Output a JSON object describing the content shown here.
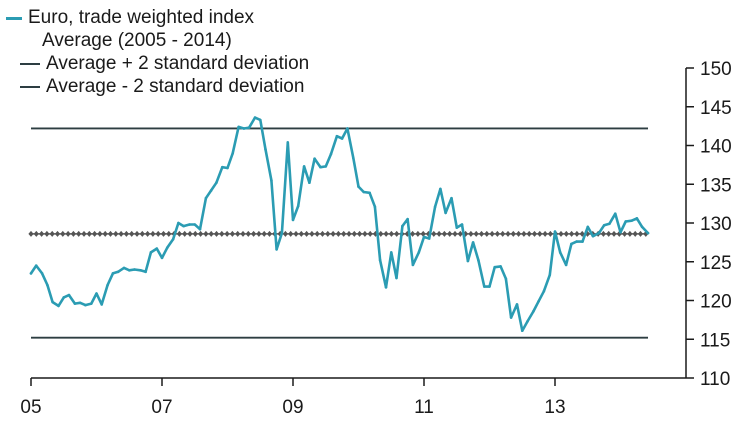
{
  "chart_data": {
    "type": "line",
    "title": "",
    "xlabel": "",
    "ylabel": "",
    "x_tick_labels": [
      "05",
      "07",
      "09",
      "11",
      "13"
    ],
    "x_tick_years": [
      2005,
      2007,
      2009,
      2011,
      2013
    ],
    "y_tick_labels": [
      "110",
      "115",
      "120",
      "125",
      "130",
      "135",
      "140",
      "145",
      "150"
    ],
    "y_tick_values": [
      110,
      115,
      120,
      125,
      130,
      135,
      140,
      145,
      150
    ],
    "xlim": [
      2005.0,
      2015.0
    ],
    "ylim": [
      110,
      150
    ],
    "y_axis_side": "right",
    "grid": false,
    "legend_position": "top-left",
    "series": [
      {
        "name": "Euro, trade weighted index",
        "color": "#2b9cb3",
        "style": "line",
        "x": [
          2005.0,
          2005.08,
          2005.17,
          2005.25,
          2005.33,
          2005.42,
          2005.5,
          2005.58,
          2005.67,
          2005.75,
          2005.83,
          2005.92,
          2006.0,
          2006.08,
          2006.17,
          2006.25,
          2006.33,
          2006.42,
          2006.5,
          2006.58,
          2006.67,
          2006.75,
          2006.83,
          2006.92,
          2007.0,
          2007.08,
          2007.17,
          2007.25,
          2007.33,
          2007.42,
          2007.5,
          2007.58,
          2007.67,
          2007.75,
          2007.83,
          2007.92,
          2008.0,
          2008.08,
          2008.17,
          2008.25,
          2008.33,
          2008.42,
          2008.5,
          2008.58,
          2008.67,
          2008.75,
          2008.83,
          2008.92,
          2009.0,
          2009.08,
          2009.17,
          2009.25,
          2009.33,
          2009.42,
          2009.5,
          2009.58,
          2009.67,
          2009.75,
          2009.83,
          2009.92,
          2010.0,
          2010.08,
          2010.17,
          2010.25,
          2010.33,
          2010.42,
          2010.5,
          2010.58,
          2010.67,
          2010.75,
          2010.83,
          2010.92,
          2011.0,
          2011.08,
          2011.17,
          2011.25,
          2011.33,
          2011.42,
          2011.5,
          2011.58,
          2011.67,
          2011.75,
          2011.83,
          2011.92,
          2012.0,
          2012.08,
          2012.17,
          2012.25,
          2012.33,
          2012.42,
          2012.5,
          2012.58,
          2012.67,
          2012.75,
          2012.83,
          2012.92,
          2013.0,
          2013.08,
          2013.17,
          2013.25,
          2013.33,
          2013.42,
          2013.5,
          2013.58,
          2013.67,
          2013.75,
          2013.83,
          2013.92,
          2014.0,
          2014.08,
          2014.17,
          2014.25,
          2014.33,
          2014.42
        ],
        "y": [
          123.5,
          124.5,
          123.5,
          122.0,
          119.8,
          119.3,
          120.4,
          120.7,
          119.6,
          119.7,
          119.4,
          119.6,
          120.9,
          119.5,
          122.0,
          123.5,
          123.7,
          124.2,
          123.9,
          124.0,
          123.9,
          123.7,
          126.2,
          126.7,
          125.5,
          126.8,
          127.9,
          130.0,
          129.6,
          129.8,
          129.8,
          129.2,
          133.2,
          134.2,
          135.2,
          137.2,
          137.1,
          139.0,
          142.4,
          142.2,
          142.3,
          143.6,
          143.3,
          139.5,
          135.5,
          126.6,
          128.7,
          140.4,
          130.4,
          132.2,
          137.3,
          135.2,
          138.3,
          137.2,
          137.3,
          138.9,
          141.2,
          140.9,
          142.2,
          138.4,
          134.7,
          134.0,
          133.9,
          132.1,
          125.2,
          121.7,
          126.2,
          122.9,
          129.6,
          130.5,
          124.6,
          126.2,
          128.2,
          128.0,
          132.1,
          134.4,
          131.3,
          133.2,
          129.4,
          129.8,
          125.1,
          127.5,
          125.2,
          121.8,
          121.8,
          124.3,
          124.4,
          122.8,
          117.8,
          119.5,
          116.1,
          117.3,
          118.6,
          119.9,
          121.2,
          123.3,
          128.9,
          126.2,
          124.6,
          127.3,
          127.6,
          127.6,
          129.5,
          128.3,
          128.7,
          129.7,
          129.9,
          131.2,
          128.8,
          130.2,
          130.3,
          130.6,
          129.5,
          128.7
        ]
      },
      {
        "name": "Average (2005 - 2014)",
        "color": "#555555",
        "style": "line-markers",
        "x": [
          2005.0,
          2014.42
        ],
        "y": [
          128.6,
          128.6
        ]
      },
      {
        "name": "Average + 2 standard deviation",
        "color": "#2d3e42",
        "style": "line",
        "x": [
          2005.0,
          2014.42
        ],
        "y": [
          142.2,
          142.2
        ]
      },
      {
        "name": "Average - 2 standard deviation",
        "color": "#2d3e42",
        "style": "line",
        "x": [
          2005.0,
          2014.42
        ],
        "y": [
          115.2,
          115.2
        ]
      }
    ]
  }
}
